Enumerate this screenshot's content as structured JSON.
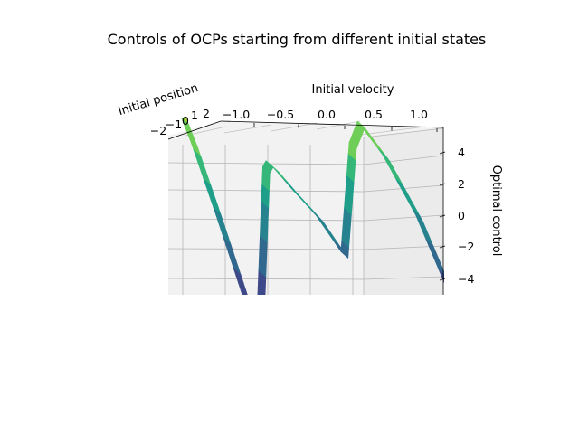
{
  "chart_data": {
    "type": "surface",
    "title": "Controls of OCPs starting from different initial states",
    "xlabel": "Initial velocity",
    "ylabel": "Initial position",
    "zlabel": "Optimal control",
    "xlim": [
      -1.2,
      1.0
    ],
    "ylim": [
      -2,
      2
    ],
    "zlim": [
      -4.8,
      5.2
    ],
    "x_ticks": [
      "−1.0",
      "−0.5",
      "0.0",
      "0.5",
      "1.0"
    ],
    "y_ticks": [
      "−2",
      "−1",
      "0",
      "1",
      "2"
    ],
    "z_ticks": [
      "4",
      "2",
      "0",
      "−2",
      "−4"
    ],
    "grid": true,
    "colormap": "viridis",
    "x": [
      -1.15,
      -1.05,
      -0.95,
      -0.8,
      -0.65,
      -0.56,
      -0.52,
      -0.5,
      -0.46,
      -0.35,
      -0.2,
      -0.05,
      0.0,
      0.05,
      0.2,
      0.4,
      0.6,
      0.75
    ],
    "z": [
      4.9,
      3.8,
      2.4,
      0.0,
      -2.5,
      -4.1,
      1.6,
      1.8,
      1.6,
      0.9,
      0.0,
      -1.2,
      2.4,
      3.1,
      2.0,
      0.0,
      -2.6,
      -4.8
    ]
  },
  "colors": {
    "pane_back": "#f2f2f2",
    "pane_side": "#ebebeb",
    "grid": "#b0b0b0",
    "viridis": [
      "#fde725",
      "#b5de2b",
      "#6ece58",
      "#35b779",
      "#1f9e89",
      "#26828e",
      "#31688e",
      "#3e4989",
      "#482878",
      "#440154"
    ]
  }
}
